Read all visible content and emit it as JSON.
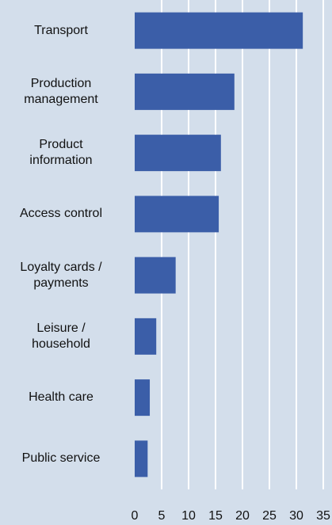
{
  "chart_data": {
    "type": "bar",
    "orientation": "horizontal",
    "categories": [
      "Transport",
      "Production\nmanagement",
      "Product\ninformation",
      "Access control",
      "Loyalty cards /\npayments",
      "Leisure /\nhousehold",
      "Health care",
      "Public service"
    ],
    "values": [
      31.2,
      18.5,
      16,
      15.6,
      7.6,
      4,
      2.8,
      2.4
    ],
    "color": "#3b5ea8",
    "xlim": [
      0,
      35
    ],
    "xticks": [
      0,
      5,
      10,
      15,
      20,
      25,
      30,
      35
    ],
    "grid": true
  }
}
